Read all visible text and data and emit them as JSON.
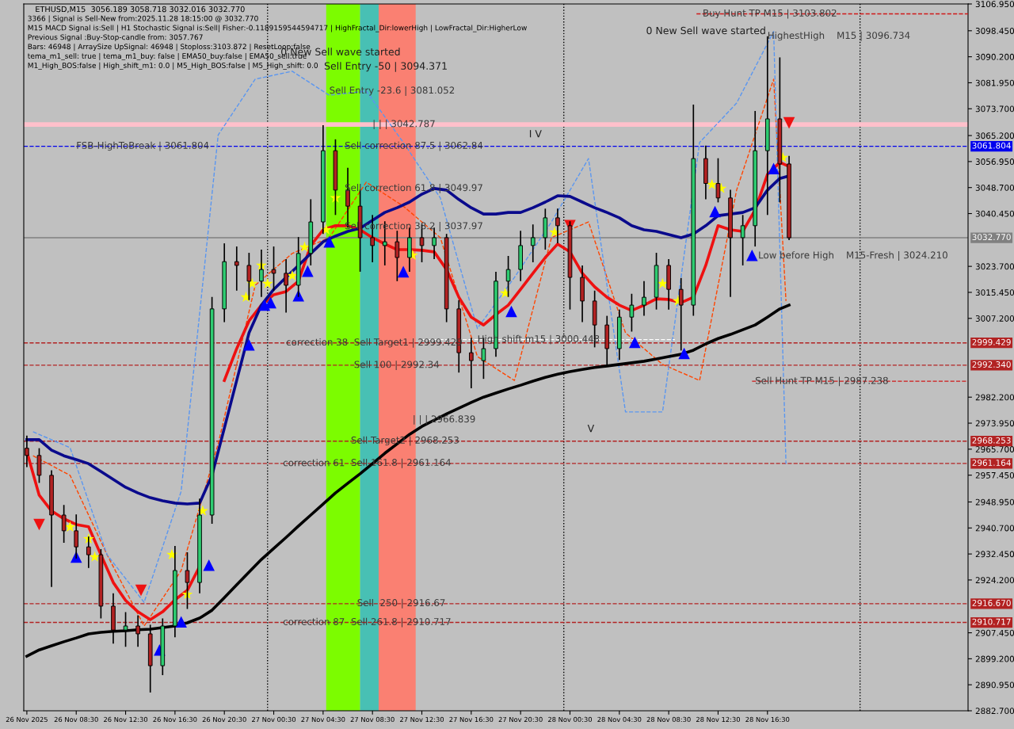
{
  "chart_data": {
    "type": "candlestick",
    "title": "ETHUSD,M15  3056.189 3058.718 3032.016 3032.770",
    "x": [
      "2025-11-26T04:30",
      "2025-11-26T05:30",
      "2025-11-26T06:30",
      "2025-11-26T07:30",
      "2025-11-26T08:30",
      "2025-11-26T09:30",
      "2025-11-26T10:30",
      "2025-11-26T11:30",
      "2025-11-26T12:30",
      "2025-11-26T13:30",
      "2025-11-26T14:30",
      "2025-11-26T15:30",
      "2025-11-26T16:30",
      "2025-11-26T17:30",
      "2025-11-26T18:30",
      "2025-11-26T19:30",
      "2025-11-26T20:30",
      "2025-11-26T21:30",
      "2025-11-26T22:30",
      "2025-11-26T23:30",
      "2025-11-27T00:30",
      "2025-11-27T01:30",
      "2025-11-27T02:30",
      "2025-11-27T03:30",
      "2025-11-27T04:30",
      "2025-11-27T05:30",
      "2025-11-27T06:30",
      "2025-11-27T07:30",
      "2025-11-27T08:30",
      "2025-11-27T09:30",
      "2025-11-27T10:30",
      "2025-11-27T11:30",
      "2025-11-27T12:30",
      "2025-11-27T13:30",
      "2025-11-27T14:30",
      "2025-11-27T15:30",
      "2025-11-27T16:30",
      "2025-11-27T17:30",
      "2025-11-27T18:30",
      "2025-11-27T19:30",
      "2025-11-27T20:30",
      "2025-11-27T21:30",
      "2025-11-27T22:30",
      "2025-11-27T23:30",
      "2025-11-28T00:30",
      "2025-11-28T01:30",
      "2025-11-28T02:30",
      "2025-11-28T03:30",
      "2025-11-28T04:30",
      "2025-11-28T05:30",
      "2025-11-28T06:30",
      "2025-11-28T07:30",
      "2025-11-28T08:30",
      "2025-11-28T09:30",
      "2025-11-28T10:30",
      "2025-11-28T11:30",
      "2025-11-28T12:30",
      "2025-11-28T13:30",
      "2025-11-28T14:30",
      "2025-11-28T15:30",
      "2025-11-28T16:30",
      "2025-11-28T17:30",
      "2025-11-28T18:15"
    ],
    "ohlc": [
      [
        2966,
        2970,
        2960,
        2963.7
      ],
      [
        2963.7,
        2966,
        2955,
        2957.4
      ],
      [
        2957.4,
        2959,
        2922,
        2944.8
      ],
      [
        2944.8,
        2948,
        2936,
        2939.8
      ],
      [
        2939.8,
        2945,
        2931,
        2934.7
      ],
      [
        2934.7,
        2938,
        2928,
        2932.2
      ],
      [
        2932.2,
        2934,
        2912,
        2915.9
      ],
      [
        2915.9,
        2920,
        2904,
        2908.3
      ],
      [
        2908.3,
        2914,
        2903,
        2909.6
      ],
      [
        2909.6,
        2913,
        2903,
        2907.1
      ],
      [
        2907.1,
        2910,
        2888.5,
        2897
      ],
      [
        2897,
        2912,
        2894,
        2909.6
      ],
      [
        2909.6,
        2935,
        2906,
        2927.2
      ],
      [
        2927.2,
        2933,
        2915,
        2923.4
      ],
      [
        2923.4,
        2950,
        2920,
        2944.8
      ],
      [
        2944.8,
        3014,
        2942,
        3010.2
      ],
      [
        3010.2,
        3031,
        3006,
        3025.2
      ],
      [
        3025.2,
        3030,
        3016,
        3024
      ],
      [
        3024,
        3028,
        3013,
        3019
      ],
      [
        3019,
        3029,
        3014,
        3022.7
      ],
      [
        3022.7,
        3030,
        3016,
        3021.5
      ],
      [
        3021.5,
        3026,
        3009,
        3017.7
      ],
      [
        3017.7,
        3033,
        3014,
        3027.8
      ],
      [
        3027.8,
        3045,
        3024,
        3037.8
      ],
      [
        3037.8,
        3068.5,
        3034,
        3060.4
      ],
      [
        3060.4,
        3064,
        3040,
        3047.9
      ],
      [
        3047.9,
        3055,
        3036,
        3042.8
      ],
      [
        3042.8,
        3048,
        3022,
        3032.8
      ],
      [
        3032.8,
        3040,
        3025,
        3030.3
      ],
      [
        3030.3,
        3038,
        3024,
        3031.5
      ],
      [
        3031.5,
        3035,
        3019,
        3026.5
      ],
      [
        3026.5,
        3036,
        3022,
        3032.8
      ],
      [
        3032.8,
        3037,
        3025,
        3030.3
      ],
      [
        3030.3,
        3036,
        3026,
        3032.8
      ],
      [
        3032.8,
        3034,
        3006,
        3010.2
      ],
      [
        3010.2,
        3013,
        2990,
        2996.3
      ],
      [
        2996.3,
        3001,
        2985,
        2993.8
      ],
      [
        2993.8,
        3001,
        2988,
        2997.6
      ],
      [
        2997.6,
        3022,
        2995,
        3019
      ],
      [
        3019,
        3027,
        3014,
        3022.7
      ],
      [
        3022.7,
        3035,
        3019,
        3030.3
      ],
      [
        3030.3,
        3037,
        3025,
        3032.8
      ],
      [
        3032.8,
        3042,
        3029,
        3039.1
      ],
      [
        3039.1,
        3042,
        3031,
        3036.6
      ],
      [
        3036.6,
        3038,
        3010,
        3020.2
      ],
      [
        3020.2,
        3024,
        3006,
        3012.7
      ],
      [
        3012.7,
        3016,
        2998,
        3005.1
      ],
      [
        3005.1,
        3008,
        2992,
        2997.6
      ],
      [
        2997.6,
        3010,
        2994,
        3007.6
      ],
      [
        3007.6,
        3015,
        3003,
        3011.4
      ],
      [
        3011.4,
        3019,
        3008,
        3013.9
      ],
      [
        3013.9,
        3028,
        3010,
        3024
      ],
      [
        3024,
        3026,
        3010,
        3016.4
      ],
      [
        3016.4,
        3020,
        2997,
        3011.4
      ],
      [
        3011.4,
        3075,
        3008,
        3057.9
      ],
      [
        3057.9,
        3062,
        3045,
        3050
      ],
      [
        3050,
        3058,
        3044,
        3045.4
      ],
      [
        3045.4,
        3048,
        3014,
        3032.8
      ],
      [
        3032.8,
        3040,
        3024,
        3036.6
      ],
      [
        3036.6,
        3073,
        3030,
        3060.4
      ],
      [
        3060.4,
        3096.7,
        3040,
        3070.5
      ],
      [
        3070.5,
        3090,
        3044,
        3056.2
      ],
      [
        3056.189,
        3058.718,
        3032.016,
        3032.77
      ]
    ],
    "series": [
      {
        "type": "line",
        "color": "#ee1111",
        "line_style": "solid",
        "values": [
          2964.9,
          2951.1,
          2946.1,
          2943.6,
          2941.8,
          2941.1,
          2932.2,
          2923.4,
          2917.7,
          2914.1,
          2911.6,
          2914.1,
          2917.9,
          2920.9,
          2928.5,
          null,
          2987.5,
          2997.6,
          3006.4,
          3011.4,
          3014.7,
          3015.7,
          3019,
          3030.3,
          3035.3,
          3036.6,
          3036.6,
          3035.3,
          3032.8,
          3030.8,
          3029,
          3029,
          3028.8,
          3028.3,
          3022.7,
          3013.9,
          3007.6,
          3005.1,
          3008.4,
          3011.4,
          3016.4,
          3021.5,
          3026.5,
          3030.8,
          3028.3,
          3021.5,
          3017.2,
          3013.9,
          3011.4,
          3009.7,
          3011.4,
          3013.4,
          3013.2,
          3012.2,
          3013.9,
          3024,
          3036.6,
          3035.3,
          3034.8,
          3041.6,
          3052.9,
          3056.7,
          3055.4
        ]
      },
      {
        "type": "line",
        "color": "#0a0a8c",
        "line_style": "solid",
        "values": [
          2968.7,
          2968.7,
          2965.4,
          2963.6,
          2962.4,
          2961.1,
          2958.6,
          2956.1,
          2953.6,
          2951.8,
          2950.3,
          2949.3,
          2948.6,
          2948.3,
          2948.6,
          2957.4,
          2972.4,
          2987.5,
          3002.6,
          3011.4,
          3016.4,
          3020.2,
          3024,
          3027.8,
          3031.5,
          3033.3,
          3034.8,
          3035.8,
          3038.3,
          3040.8,
          3042.3,
          3044.1,
          3046.6,
          3048.4,
          3047.9,
          3044.9,
          3042.3,
          3040.3,
          3040.3,
          3040.8,
          3040.8,
          3042.3,
          3044.1,
          3046.1,
          3045.9,
          3044.1,
          3042.3,
          3040.8,
          3039.1,
          3036.6,
          3035.3,
          3034.8,
          3033.8,
          3032.8,
          3034,
          3036.6,
          3039.8,
          3040.3,
          3040.8,
          3042.3,
          3047.9,
          3051.6,
          3052.4
        ]
      },
      {
        "type": "line",
        "color": "#000000",
        "line_style": "solid",
        "values": [
          2900,
          2902,
          2903.3,
          2904.6,
          2905.8,
          2907.1,
          2907.6,
          2907.9,
          2908.1,
          2908.4,
          2908.6,
          2909.1,
          2909.6,
          2910.6,
          2912.1,
          2914.6,
          2918.6,
          2922.7,
          2926.7,
          2930.7,
          2934.2,
          2937.7,
          2941.3,
          2944.8,
          2948.3,
          2951.8,
          2954.9,
          2957.9,
          2961.1,
          2964.4,
          2967.4,
          2970.4,
          2972.9,
          2974.9,
          2976.9,
          2978.7,
          2980.5,
          2982.2,
          2983.5,
          2984.8,
          2986,
          2987.3,
          2988.5,
          2989.5,
          2990.3,
          2991,
          2991.6,
          2992.1,
          2992.6,
          2993.1,
          2993.6,
          2994.3,
          2995.1,
          2995.8,
          2997.1,
          2999.1,
          3000.8,
          3002.1,
          3003.6,
          3005.1,
          3007.6,
          3010.2,
          3011.4
        ]
      },
      {
        "type": "line",
        "color": "#ff4500",
        "line_style": "dashed",
        "x": [
          "2025-11-26T05:00",
          "2025-11-26T08:00",
          "2025-11-26T11:00",
          "2025-11-26T14:00",
          "2025-11-26T17:00",
          "2025-11-26T20:00",
          "2025-11-26T23:00",
          "2025-11-27T02:00",
          "2025-11-27T05:00",
          "2025-11-27T08:00",
          "2025-11-27T11:00",
          "2025-11-27T14:00",
          "2025-11-27T17:00",
          "2025-11-27T20:00",
          "2025-11-27T23:00",
          "2025-11-28T02:00",
          "2025-11-28T05:00",
          "2025-11-28T08:00",
          "2025-11-28T11:00",
          "2025-11-28T14:00",
          "2025-11-28T17:00",
          "2025-11-28T18:00"
        ],
        "values": [
          2963.6,
          2957.4,
          2932.2,
          2909.6,
          2927.2,
          2967.4,
          3017.7,
          3027.8,
          3032.8,
          3050.4,
          3042.8,
          3032.8,
          2995.1,
          2987.5,
          3032.8,
          3037.8,
          3002.6,
          2992.6,
          2987.5,
          3047.9,
          3083.1,
          3012.7
        ]
      },
      {
        "type": "line",
        "color": "#5a96f0",
        "line_style": "dashed",
        "x": [
          "2025-11-26T05:00",
          "2025-11-26T08:00",
          "2025-11-26T11:00",
          "2025-11-26T14:00",
          "2025-11-26T17:00",
          "2025-11-26T20:00",
          "2025-11-26T23:00",
          "2025-11-27T02:00",
          "2025-11-27T05:00",
          "2025-11-27T08:00",
          "2025-11-27T11:00",
          "2025-11-27T14:00",
          "2025-11-27T17:00",
          "2025-11-27T20:00",
          "2025-11-27T23:00",
          "2025-11-28T02:00",
          "2025-11-28T05:00",
          "2025-11-28T08:00",
          "2025-11-28T11:00",
          "2025-11-28T14:00",
          "2025-11-28T17:00",
          "2025-11-28T18:00"
        ],
        "values": [
          2971.2,
          2966.2,
          2932.2,
          2917.1,
          2952.3,
          3065.4,
          3083.1,
          3085.6,
          3078,
          3079.3,
          3063,
          3045.4,
          3004,
          3020.2,
          3037.8,
          3057.9,
          2977.5,
          2977.5,
          3063,
          3075.5,
          3098.2,
          2961.1
        ]
      },
      {
        "type": "line",
        "color": "#ffffff",
        "line_style": "dashed",
        "x": [
          "2025-11-27T12:30",
          "2025-11-28T09:00"
        ],
        "values": [
          3000.448,
          3000.448
        ]
      },
      {
        "type": "line",
        "color": "#d01818",
        "line_style": "dashed",
        "x": [
          "2025-11-28T10:45",
          "2025-11-29T08:45"
        ],
        "values": [
          3103.802,
          3103.802
        ]
      },
      {
        "type": "line",
        "color": "#d01818",
        "line_style": "dashed",
        "x": [
          "2025-11-28T15:15",
          "2025-11-29T08:45"
        ],
        "values": [
          2987.238,
          2987.238
        ]
      },
      {
        "type": "scatter",
        "color": "#ffff00",
        "marker": "star",
        "x": [
          "2025-11-26T08:00",
          "2025-11-26T09:30",
          "2025-11-26T10:00",
          "2025-11-26T16:15",
          "2025-11-26T17:30",
          "2025-11-26T18:45",
          "2025-11-26T22:15",
          "2025-11-26T22:45",
          "2025-11-26T23:30",
          "2025-11-27T00:00",
          "2025-11-27T02:00",
          "2025-11-27T03:00",
          "2025-11-27T04:45",
          "2025-11-27T05:30",
          "2025-11-27T11:45",
          "2025-11-27T19:15",
          "2025-11-27T23:15",
          "2025-11-28T08:00",
          "2025-11-28T09:15",
          "2025-11-28T12:00",
          "2025-11-28T12:45",
          "2025-11-28T16:30",
          "2025-11-28T17:45"
        ],
        "values": [
          2941,
          2937.2,
          2931.5,
          2932.2,
          2919.6,
          2946.1,
          3013.9,
          3018.2,
          3024,
          3018.2,
          3020.7,
          3029.8,
          3035.3,
          3045.4,
          3027.2,
          3015.2,
          3034.5,
          3018.2,
          3012.7,
          3049.6,
          3048.4,
          null,
          3058.2
        ]
      },
      {
        "type": "scatter",
        "color": "#0000ff",
        "marker": "triangle",
        "x": [
          "2025-11-26T08:30",
          "2025-11-26T15:15",
          "2025-11-26T17:00",
          "2025-11-26T19:15",
          "2025-11-26T22:30",
          "2025-11-26T23:45",
          "2025-11-27T00:15",
          "2025-11-27T02:30",
          "2025-11-27T03:15",
          "2025-11-27T05:00",
          "2025-11-27T11:00",
          "2025-11-27T19:45",
          "2025-11-28T05:45",
          "2025-11-28T09:45",
          "2025-11-28T12:15",
          "2025-11-28T15:15",
          "2025-11-28T17:00"
        ],
        "values": [
          2931.5,
          2902,
          2910.9,
          2928.9,
          2998.8,
          3011.4,
          3012.2,
          3014.4,
          3022.2,
          3031.5,
          3022,
          3009.4,
          2999.6,
          2996.1,
          3041.1,
          3027.2,
          3054.7
        ]
      },
      {
        "type": "scatter",
        "color": "#ee1111",
        "x": [
          "2025-11-26T05:30",
          "2025-11-26T13:45",
          "2025-11-28T00:30",
          "2025-11-28T18:15"
        ],
        "values": [
          2941.8,
          2920.9,
          3036.6,
          3069.2
        ]
      }
    ],
    "xlim": [
      "2025-11-26T04:15",
      "2025-11-29T08:45"
    ],
    "xticks": [
      {
        "value": "2025-11-26T04:30",
        "label": "26 Nov 2025"
      },
      {
        "value": "2025-11-26T08:30",
        "label": "26 Nov 08:30"
      },
      {
        "value": "2025-11-26T12:30",
        "label": "26 Nov 12:30"
      },
      {
        "value": "2025-11-26T16:30",
        "label": "26 Nov 16:30"
      },
      {
        "value": "2025-11-26T20:30",
        "label": "26 Nov 20:30"
      },
      {
        "value": "2025-11-27T00:30",
        "label": "27 Nov 00:30"
      },
      {
        "value": "2025-11-27T04:30",
        "label": "27 Nov 04:30"
      },
      {
        "value": "2025-11-27T08:30",
        "label": "27 Nov 08:30"
      },
      {
        "value": "2025-11-27T12:30",
        "label": "27 Nov 12:30"
      },
      {
        "value": "2025-11-27T16:30",
        "label": "27 Nov 16:30"
      },
      {
        "value": "2025-11-27T20:30",
        "label": "27 Nov 20:30"
      },
      {
        "value": "2025-11-28T00:30",
        "label": "28 Nov 00:30"
      },
      {
        "value": "2025-11-28T04:30",
        "label": "28 Nov 04:30"
      },
      {
        "value": "2025-11-28T08:30",
        "label": "28 Nov 08:30"
      },
      {
        "value": "2025-11-28T12:30",
        "label": "28 Nov 12:30"
      },
      {
        "value": "2025-11-28T16:30",
        "label": "28 Nov 16:30"
      }
    ],
    "ylim": [
      2882.7,
      3106.95
    ],
    "yticks": [
      {
        "value": 2882.7,
        "label": "2882.700"
      },
      {
        "value": 2890.95,
        "label": "2890.950"
      },
      {
        "value": 2899.2,
        "label": "2899.200"
      },
      {
        "value": 2907.45,
        "label": "2907.450"
      },
      {
        "value": 2924.2,
        "label": "2924.200"
      },
      {
        "value": 2932.45,
        "label": "2932.450"
      },
      {
        "value": 2940.7,
        "label": "2940.700"
      },
      {
        "value": 2948.95,
        "label": "2948.950"
      },
      {
        "value": 2957.45,
        "label": "2957.450"
      },
      {
        "value": 2965.7,
        "label": "2965.700"
      },
      {
        "value": 2973.95,
        "label": "2973.950"
      },
      {
        "value": 2982.2,
        "label": "2982.200"
      },
      {
        "value": 3007.2,
        "label": "3007.200"
      },
      {
        "value": 3015.45,
        "label": "3015.450"
      },
      {
        "value": 3023.7,
        "label": "3023.700"
      },
      {
        "value": 3040.45,
        "label": "3040.450"
      },
      {
        "value": 3048.7,
        "label": "3048.700"
      },
      {
        "value": 3056.95,
        "label": "3056.950"
      },
      {
        "value": 3065.2,
        "label": "3065.200"
      },
      {
        "value": 3073.7,
        "label": "3073.700"
      },
      {
        "value": 3081.95,
        "label": "3081.950"
      },
      {
        "value": 3090.2,
        "label": "3090.200"
      },
      {
        "value": 3098.45,
        "label": "3098.450"
      },
      {
        "value": 3106.95,
        "label": "3106.950"
      }
    ],
    "bands": [
      {
        "axis": "x",
        "from": "2025-11-27T04:45",
        "to": "2025-11-27T07:30",
        "color": "#7cfc00"
      },
      {
        "axis": "x",
        "from": "2025-11-27T07:30",
        "to": "2025-11-27T09:00",
        "color": "#48c0b4"
      },
      {
        "axis": "x",
        "from": "2025-11-27T09:00",
        "to": "2025-11-27T12:00",
        "color": "#fa8072"
      }
    ],
    "ref_lines": [
      {
        "axis": "y",
        "value": 3068.7,
        "color": "#ffc0cb",
        "line_style": "solid"
      },
      {
        "axis": "y",
        "value": 3061.804,
        "label": "3061.804",
        "color": "#0000ee",
        "line_style": "dashed"
      },
      {
        "axis": "y",
        "value": 3032.77,
        "label": "3032.770",
        "color": "#808080",
        "line_style": "solid"
      },
      {
        "axis": "y",
        "value": 2999.429,
        "label": "2999.429",
        "color": "#b22222",
        "line_style": "dashed"
      },
      {
        "axis": "y",
        "value": 2992.34,
        "label": "2992.340",
        "color": "#b22222",
        "line_style": "dashed"
      },
      {
        "axis": "y",
        "value": 2968.253,
        "label": "2968.253",
        "color": "#b22222",
        "line_style": "dashed"
      },
      {
        "axis": "y",
        "value": 2961.164,
        "label": "2961.164",
        "color": "#b22222",
        "line_style": "dashed"
      },
      {
        "axis": "y",
        "value": 2916.67,
        "label": "2916.670",
        "color": "#b22222",
        "line_style": "dashed"
      },
      {
        "axis": "y",
        "value": 2910.717,
        "label": "2910.717",
        "color": "#b22222",
        "line_style": "dashed"
      },
      {
        "axis": "x",
        "value": "2025-11-27T00:00",
        "color": "#000000",
        "line_style": "dotted"
      },
      {
        "axis": "x",
        "value": "2025-11-28T00:00",
        "color": "#000000",
        "line_style": "dotted"
      },
      {
        "axis": "x",
        "value": "2025-11-29T00:00",
        "color": "#000000",
        "line_style": "dotted"
      }
    ],
    "annotations": [
      "3366 | Signal is Sell-New from:2025.11.28 18:15:00 @ 3032.770",
      "M15 MACD Signal is:Sell | H1 Stochastic Signal is:Sell| Fisher:-0.1189159544594717 | HighFractal_Dir:lowerHigh | LowFractal_Dir:HigherLow",
      "Previous Signal :Buy-Stop-candle from: 3057.767",
      "Bars: 46948 | ArraySize UpSignal: 46948 | Stoploss:3103.872 | ResetLoop:false",
      "tema_m1_sell: true | tema_m1_buy: false | EMA50_buy:false | EMA50_sell:true",
      "M1_High_BOS:false | High_shift_m1: 0.0 | M5_High_BOS:false | M5_High_shift: 0.0",
      "0 New Sell wave started",
      "Sell Entry -50 | 3094.371",
      "0 New Sell wave started",
      "I V",
      "V",
      {
        "text": "Sell Entry -23.6 | 3081.052",
        "x": "2025-11-27T05:00",
        "y": 3079.3
      },
      {
        "text": "| | | 3042.787",
        "x": "2025-11-27T08:30",
        "y": 3068.7
      },
      {
        "text": "FSB-HighToBreak | 3061.804",
        "x": "2025-11-26T08:30",
        "y": 3061.804
      },
      {
        "text": "Sell correction 87.5 | 3062.84",
        "x": "2025-11-27T06:15",
        "y": 3061.804
      },
      {
        "text": "Sell correction 61.8 | 3049.97",
        "x": "2025-11-27T06:15",
        "y": 3048.4
      },
      {
        "text": "Sell correction 38.2 | 3037.97",
        "x": "2025-11-27T06:15",
        "y": 3036.3
      },
      {
        "text": "Buy Hunt TP M15 | 3103.802",
        "x": "2025-11-28T11:15",
        "y": 3103.8
      },
      {
        "text": "HighestHigh    M15 | 3096.734",
        "x": "2025-11-28T16:30",
        "y": 3096.7
      },
      {
        "text": "Low before High    M15-Fresh | 3024.210",
        "x": "2025-11-28T15:45",
        "y": 3027
      },
      {
        "text": "High shift m15 | 3000.448",
        "x": "2025-11-27T17:00",
        "y": 3000.448
      },
      {
        "text": "correction 38",
        "x": "2025-11-27T01:30",
        "y": 2999.429
      },
      {
        "text": "Sell Target1 | 2999.429",
        "x": "2025-11-27T07:00",
        "y": 2999.4
      },
      {
        "text": "Sell 100 | 2992.34",
        "x": "2025-11-27T07:00",
        "y": 2992.3
      },
      {
        "text": "| | | 2966.839",
        "x": "2025-11-27T11:45",
        "y": 2975
      },
      {
        "text": "Sell Hunt TP M15 | 2987.238",
        "x": "2025-11-28T15:30",
        "y": 2987.2
      },
      {
        "text": "Sell Target2 | 2968.253",
        "x": "2025-11-27T06:45",
        "y": 2968.3
      },
      {
        "text": "Sell 161.8 | 2961.164",
        "x": "2025-11-27T06:45",
        "y": 2961.2
      },
      {
        "text": "correction 61",
        "x": "2025-11-27T01:15",
        "y": 2961.164
      },
      {
        "text": "Sell  250 | 2916.67",
        "x": "2025-11-27T07:15",
        "y": 2916.7
      },
      {
        "text": "Sell 261.8 | 2910.717",
        "x": "2025-11-27T06:45",
        "y": 2910.7
      },
      {
        "text": "correction 87",
        "x": "2025-11-27T01:15",
        "y": 2910.717
      }
    ],
    "grid": false,
    "legend": false
  }
}
